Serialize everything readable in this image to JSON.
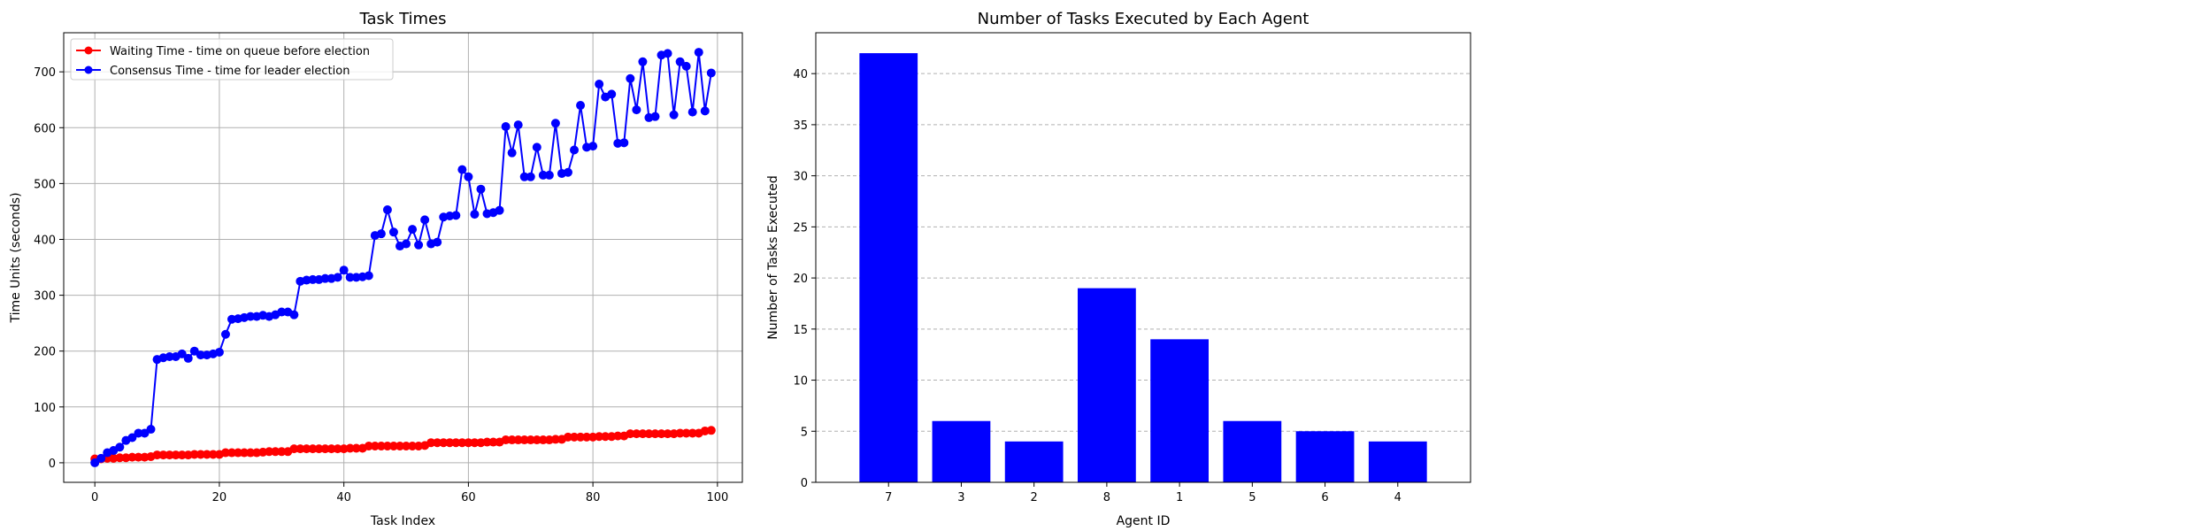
{
  "chart_data": [
    {
      "type": "line",
      "title": "Task Times",
      "xlabel": "Task Index",
      "ylabel": "Time Units (seconds)",
      "xlim": [
        -5,
        104
      ],
      "ylim": [
        -35,
        770
      ],
      "xticks": [
        0,
        20,
        40,
        60,
        80,
        100
      ],
      "yticks": [
        0,
        100,
        200,
        300,
        400,
        500,
        600,
        700
      ],
      "grid": true,
      "legend_position": "top-left",
      "series": [
        {
          "name": "Waiting Time - time on queue before election",
          "color": "#ff0000",
          "marker": "circle",
          "x": [
            0,
            1,
            2,
            3,
            4,
            5,
            6,
            7,
            8,
            9,
            10,
            11,
            12,
            13,
            14,
            15,
            16,
            17,
            18,
            19,
            20,
            21,
            22,
            23,
            24,
            25,
            26,
            27,
            28,
            29,
            30,
            31,
            32,
            33,
            34,
            35,
            36,
            37,
            38,
            39,
            40,
            41,
            42,
            43,
            44,
            45,
            46,
            47,
            48,
            49,
            50,
            51,
            52,
            53,
            54,
            55,
            56,
            57,
            58,
            59,
            60,
            61,
            62,
            63,
            64,
            65,
            66,
            67,
            68,
            69,
            70,
            71,
            72,
            73,
            74,
            75,
            76,
            77,
            78,
            79,
            80,
            81,
            82,
            83,
            84,
            85,
            86,
            87,
            88,
            89,
            90,
            91,
            92,
            93,
            94,
            95,
            96,
            97,
            98,
            99
          ],
          "y": [
            7,
            7,
            8,
            8,
            9,
            9,
            10,
            10,
            10,
            11,
            14,
            14,
            14,
            14,
            14,
            14,
            15,
            15,
            15,
            15,
            15,
            18,
            18,
            18,
            18,
            18,
            18,
            19,
            20,
            20,
            20,
            20,
            25,
            25,
            25,
            25,
            25,
            25,
            25,
            25,
            25,
            26,
            26,
            26,
            30,
            30,
            30,
            30,
            30,
            30,
            30,
            30,
            30,
            31,
            36,
            36,
            36,
            36,
            36,
            36,
            36,
            36,
            36,
            37,
            37,
            37,
            41,
            41,
            41,
            41,
            41,
            41,
            41,
            41,
            42,
            42,
            46,
            46,
            46,
            46,
            46,
            47,
            47,
            47,
            48,
            48,
            52,
            52,
            52,
            52,
            52,
            52,
            52,
            52,
            53,
            53,
            53,
            53,
            57,
            58
          ]
        },
        {
          "name": "Consensus Time - time for leader election",
          "color": "#0000ff",
          "marker": "circle",
          "x": [
            0,
            1,
            2,
            3,
            4,
            5,
            6,
            7,
            8,
            9,
            10,
            11,
            12,
            13,
            14,
            15,
            16,
            17,
            18,
            19,
            20,
            21,
            22,
            23,
            24,
            25,
            26,
            27,
            28,
            29,
            30,
            31,
            32,
            33,
            34,
            35,
            36,
            37,
            38,
            39,
            40,
            41,
            42,
            43,
            44,
            45,
            46,
            47,
            48,
            49,
            50,
            51,
            52,
            53,
            54,
            55,
            56,
            57,
            58,
            59,
            60,
            61,
            62,
            63,
            64,
            65,
            66,
            67,
            68,
            69,
            70,
            71,
            72,
            73,
            74,
            75,
            76,
            77,
            78,
            79,
            80,
            81,
            82,
            83,
            84,
            85,
            86,
            87,
            88,
            89,
            90,
            91,
            92,
            93,
            94,
            95,
            96,
            97,
            98,
            99
          ],
          "y": [
            0,
            8,
            18,
            22,
            28,
            40,
            45,
            53,
            53,
            60,
            185,
            188,
            190,
            190,
            195,
            187,
            200,
            193,
            193,
            195,
            198,
            230,
            257,
            258,
            260,
            262,
            262,
            264,
            262,
            265,
            270,
            270,
            265,
            325,
            327,
            328,
            328,
            330,
            330,
            332,
            345,
            332,
            332,
            333,
            335,
            407,
            410,
            453,
            413,
            388,
            392,
            418,
            390,
            435,
            392,
            395,
            440,
            442,
            443,
            525,
            512,
            445,
            490,
            446,
            448,
            452,
            602,
            555,
            605,
            512,
            512,
            565,
            515,
            515,
            608,
            518,
            520,
            560,
            640,
            565,
            567,
            678,
            655,
            660,
            572,
            573,
            688,
            632,
            718,
            618,
            620,
            730,
            733,
            623,
            718,
            710,
            628,
            735,
            630,
            698
          ]
        }
      ]
    },
    {
      "type": "bar",
      "title": "Number of Tasks Executed by Each Agent",
      "xlabel": "Agent ID",
      "ylabel": "Number of Tasks Executed",
      "categories": [
        "7",
        "3",
        "2",
        "8",
        "1",
        "5",
        "6",
        "4"
      ],
      "values": [
        42,
        6,
        4,
        19,
        14,
        6,
        5,
        4
      ],
      "ylim": [
        0,
        44
      ],
      "yticks": [
        0,
        5,
        10,
        15,
        20,
        25,
        30,
        35,
        40
      ],
      "grid": "y-dashed",
      "bar_color": "#0000ff"
    }
  ]
}
